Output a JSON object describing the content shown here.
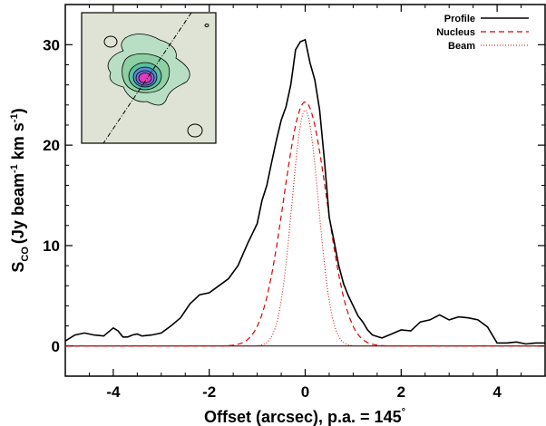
{
  "chart_data": {
    "type": "line",
    "xlabel": "Offset (arcsec), p.a. = 145",
    "xlabel_degree": "°",
    "ylabel_main": "S",
    "ylabel_sub": "CO",
    "ylabel_units": "(Jy beam",
    "ylabel_exp1": "-1",
    "ylabel_mid": " km s",
    "ylabel_exp2": "-1",
    "ylabel_close": ")",
    "xlim": [
      -5,
      5
    ],
    "ylim": [
      -3,
      34
    ],
    "xticks": [
      -4,
      -2,
      0,
      2,
      4
    ],
    "yticks": [
      0,
      10,
      20,
      30
    ],
    "legend_position": "top-right",
    "series": [
      {
        "name": "Profile",
        "style": "solid",
        "color": "#000000",
        "x": [
          -5.0,
          -4.8,
          -4.6,
          -4.4,
          -4.2,
          -4.0,
          -3.9,
          -3.8,
          -3.7,
          -3.6,
          -3.5,
          -3.4,
          -3.2,
          -3.0,
          -2.8,
          -2.6,
          -2.4,
          -2.2,
          -2.0,
          -1.8,
          -1.6,
          -1.4,
          -1.2,
          -1.0,
          -0.9,
          -0.8,
          -0.7,
          -0.6,
          -0.5,
          -0.4,
          -0.3,
          -0.2,
          -0.1,
          0.0,
          0.1,
          0.2,
          0.3,
          0.4,
          0.5,
          0.6,
          0.7,
          0.8,
          0.9,
          1.0,
          1.1,
          1.2,
          1.3,
          1.4,
          1.6,
          1.8,
          2.0,
          2.2,
          2.4,
          2.6,
          2.8,
          3.0,
          3.2,
          3.4,
          3.6,
          3.8,
          4.0,
          4.2,
          4.4,
          4.6,
          4.8,
          5.0
        ],
        "y": [
          0.5,
          1.1,
          1.3,
          1.1,
          1.0,
          1.8,
          1.5,
          0.9,
          0.9,
          1.1,
          1.2,
          1.0,
          1.1,
          1.3,
          2.0,
          2.8,
          4.2,
          5.1,
          5.3,
          6.0,
          6.7,
          8.0,
          10.2,
          12.2,
          14.5,
          16.0,
          18.3,
          20.5,
          22.5,
          23.8,
          26.0,
          29.5,
          30.3,
          30.5,
          28.2,
          26.5,
          23.5,
          18.5,
          12.8,
          10.5,
          8.0,
          6.2,
          5.0,
          4.0,
          3.0,
          2.4,
          1.6,
          1.1,
          0.8,
          1.2,
          1.6,
          1.5,
          2.4,
          2.6,
          3.1,
          2.6,
          2.9,
          2.8,
          2.6,
          1.9,
          0.3,
          0.3,
          0.4,
          0.2,
          0.3,
          0.3
        ]
      },
      {
        "name": "Nucleus",
        "style": "dashed",
        "color": "#dd0000",
        "gaussian": {
          "amplitude": 24.3,
          "fwhm": 1.05,
          "center": 0
        }
      },
      {
        "name": "Beam",
        "style": "dotted",
        "color": "#dd0000",
        "gaussian": {
          "amplitude": 23.5,
          "fwhm": 0.65,
          "center": 0
        }
      }
    ]
  },
  "inset": {
    "fill_color": "#dfe3d5",
    "contour_colors": [
      "#b8dfc3",
      "#8fcfa4",
      "#5bbf9f",
      "#4e8fd0",
      "#8070d8",
      "#e23bbf"
    ]
  }
}
